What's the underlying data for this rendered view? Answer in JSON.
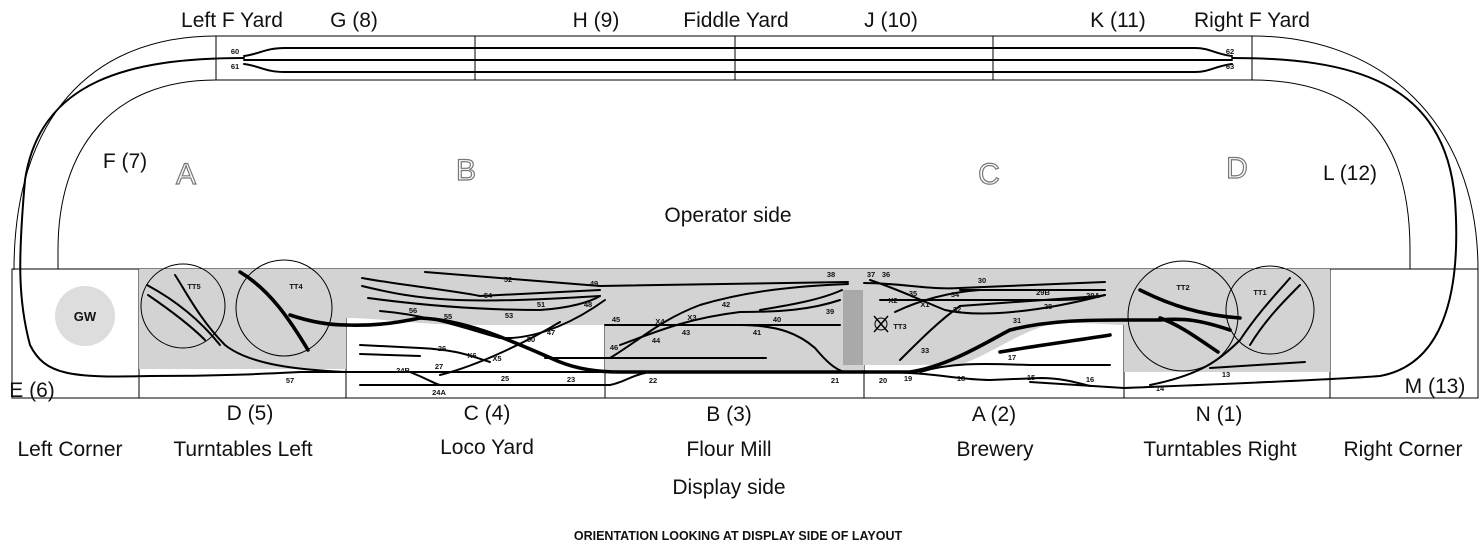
{
  "colors": {
    "board": "#d3d3d3",
    "gw": "#dddddd",
    "pillar": "#a9a9a9",
    "track": "#000000"
  },
  "top": {
    "left_f_yard": "Left F Yard",
    "g": "G (8)",
    "h": "H (9)",
    "fiddle": "Fiddle Yard",
    "j": "J (10)",
    "k": "K (11)",
    "right_f_yard": "Right F Yard"
  },
  "middle": {
    "f": "F (7)",
    "l": "L (12)",
    "operator": "Operator side",
    "letters": [
      "A",
      "B",
      "C",
      "D"
    ]
  },
  "sides": {
    "e": "E (6)",
    "m": "M (13)"
  },
  "boards": [
    {
      "code": "D (5)",
      "name": "Turntables Left"
    },
    {
      "code": "C (4)",
      "name": "Loco Yard"
    },
    {
      "code": "B (3)",
      "name": "Flour Mill"
    },
    {
      "code": "A (2)",
      "name": "Brewery"
    },
    {
      "code": "N (1)",
      "name": "Turntables Right"
    }
  ],
  "corners": {
    "left": "Left Corner",
    "right": "Right Corner"
  },
  "display_side": "Display side",
  "gw": "GW",
  "turntables": [
    "TT5",
    "TT4",
    "TT3",
    "TT2",
    "TT1"
  ],
  "numbers": {
    "n60": "60",
    "n61": "61",
    "n62": "62",
    "n63": "63",
    "n52": "52",
    "n49": "49",
    "n54": "54",
    "n51": "51",
    "n48": "48",
    "n56": "56",
    "n55": "55",
    "n53": "53",
    "n47": "47",
    "n50": "50",
    "n26": "26",
    "x6": "X6",
    "x5": "X5",
    "n24b": "24B",
    "n27": "27",
    "n25": "25",
    "n23": "23",
    "n24a": "24A",
    "n57": "57",
    "n38": "38",
    "n42": "42",
    "n45": "45",
    "x4": "X4",
    "x3": "X3",
    "n40": "40",
    "n39": "39",
    "n43": "43",
    "n41": "41",
    "n44": "44",
    "n46": "46",
    "n22": "22",
    "n21": "21",
    "n37": "37",
    "n36": "36",
    "n30": "30",
    "n35": "35",
    "x2": "X2",
    "x1": "X1",
    "n34": "34",
    "n29b": "29B",
    "n29a": "29A",
    "n32": "32",
    "n28": "28",
    "n31": "31",
    "n33": "33",
    "n17": "17",
    "n20": "20",
    "n19": "19",
    "n18": "18",
    "n15": "15",
    "n16": "16",
    "n14": "14",
    "n13": "13"
  },
  "footer": "ORIENTATION LOOKING AT DISPLAY SIDE OF LAYOUT"
}
